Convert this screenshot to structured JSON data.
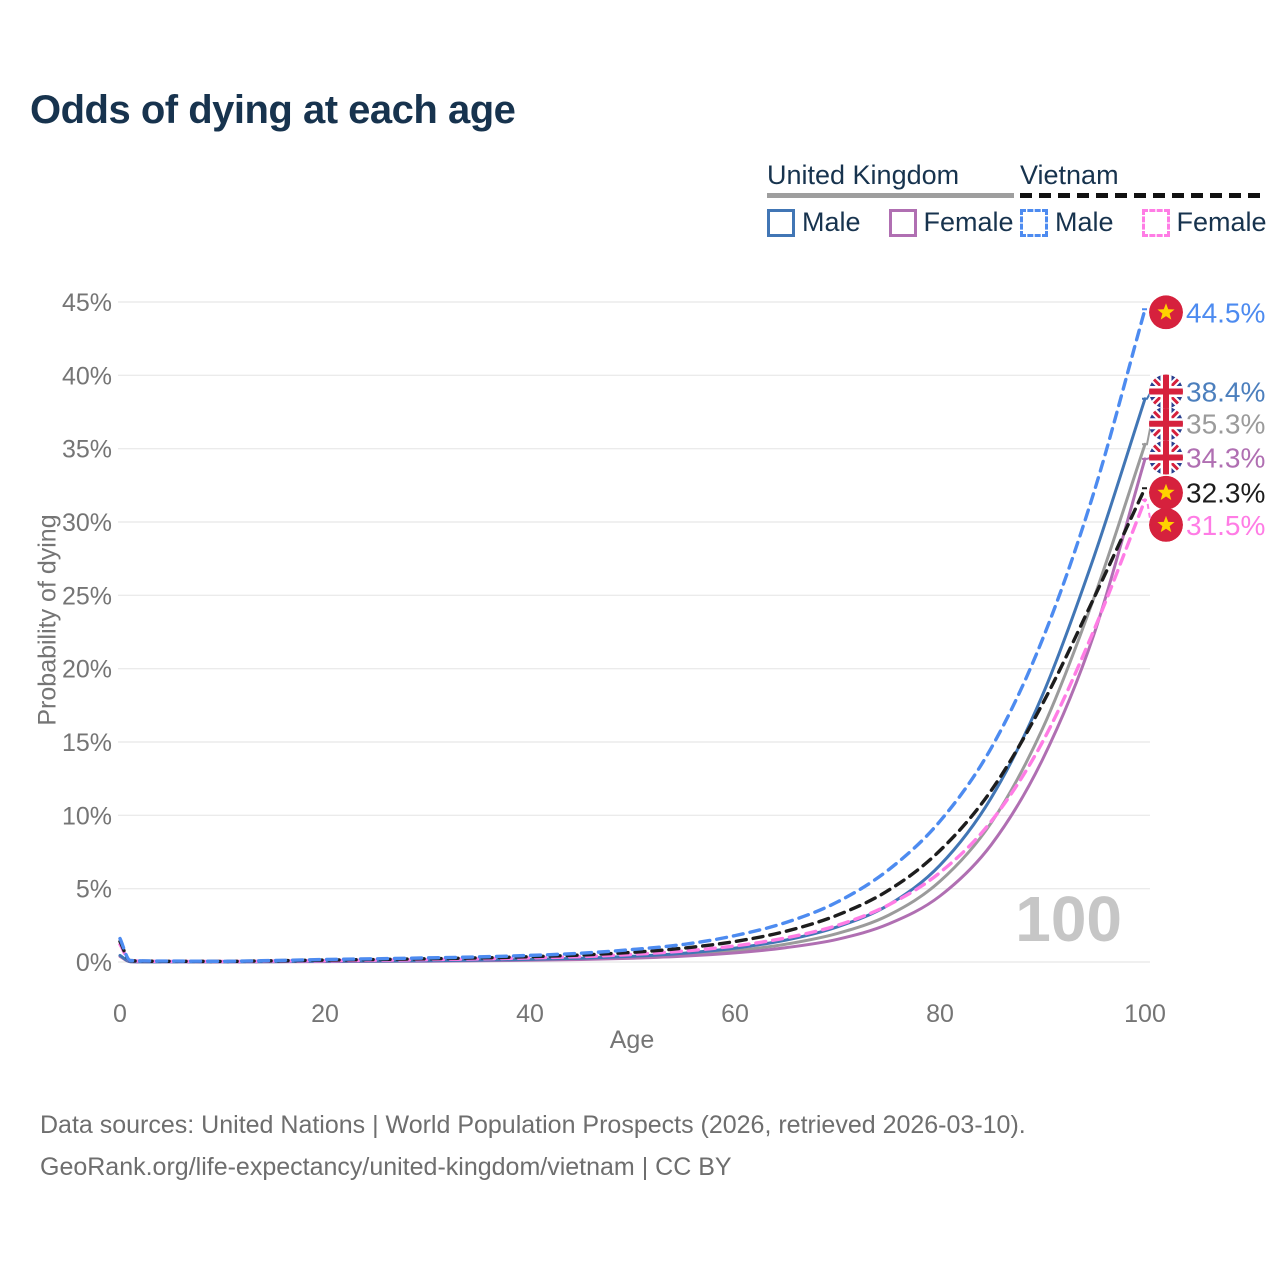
{
  "header": {
    "title": "Odds of dying at each age"
  },
  "legend": {
    "groups": [
      {
        "title": "United Kingdom",
        "underline_style": "solid",
        "underline_color": "#9e9e9e",
        "items": [
          {
            "label": "Male",
            "swatch_color": "#4176b5",
            "swatch_style": "solid"
          },
          {
            "label": "Female",
            "swatch_color": "#b06fb2",
            "swatch_style": "solid"
          }
        ]
      },
      {
        "title": "Vietnam",
        "underline_style": "dashed",
        "underline_color": "#111111",
        "items": [
          {
            "label": "Male",
            "swatch_color": "#4d8bf0",
            "swatch_style": "dashed"
          },
          {
            "label": "Female",
            "swatch_color": "#ff7ce5",
            "swatch_style": "dashed"
          }
        ]
      }
    ]
  },
  "chart_data": {
    "type": "line",
    "title": "Odds of dying at each age",
    "xlabel": "Age",
    "ylabel": "Probability of dying",
    "xlim": [
      0,
      100
    ],
    "ylim": [
      0,
      45
    ],
    "x_ticks": [
      0,
      20,
      40,
      60,
      80,
      100
    ],
    "y_ticks_percent": [
      0,
      5,
      10,
      15,
      20,
      25,
      30,
      35,
      40,
      45
    ],
    "grid": "horizontal",
    "watermark": "100",
    "ages": [
      0,
      1,
      5,
      10,
      15,
      20,
      25,
      30,
      35,
      40,
      45,
      50,
      55,
      60,
      65,
      70,
      75,
      80,
      85,
      90,
      95,
      100
    ],
    "series": [
      {
        "name": "United Kingdom Total",
        "flag": "uk",
        "line_style": "solid",
        "color": "#9b9b9b",
        "values_percent": [
          0.42,
          0.025,
          0.009,
          0.009,
          0.025,
          0.045,
          0.055,
          0.075,
          0.105,
          0.15,
          0.21,
          0.32,
          0.49,
          0.77,
          1.22,
          1.95,
          3.2,
          5.5,
          9.5,
          15.9,
          24.8,
          35.3
        ],
        "end_label": "35.3%",
        "label_color": "#9b9b9b",
        "label_pos_percent": 36.7
      },
      {
        "name": "United Kingdom Female",
        "flag": "uk",
        "line_style": "solid",
        "color": "#b06fb2",
        "values_percent": [
          0.38,
          0.02,
          0.008,
          0.008,
          0.02,
          0.03,
          0.04,
          0.055,
          0.08,
          0.12,
          0.17,
          0.26,
          0.4,
          0.62,
          0.98,
          1.55,
          2.6,
          4.5,
          8.0,
          13.8,
          22.3,
          34.3
        ],
        "end_label": "34.3%",
        "label_color": "#b06fb2",
        "label_pos_percent": 34.4
      },
      {
        "name": "United Kingdom Male",
        "flag": "uk",
        "line_style": "solid",
        "color": "#4176b5",
        "values_percent": [
          0.45,
          0.03,
          0.01,
          0.01,
          0.03,
          0.06,
          0.07,
          0.09,
          0.13,
          0.18,
          0.26,
          0.39,
          0.6,
          0.95,
          1.5,
          2.4,
          3.9,
          6.6,
          11.2,
          18.2,
          27.6,
          38.4
        ],
        "end_label": "38.4%",
        "label_color": "#4c7fbd",
        "label_pos_percent": 38.9
      },
      {
        "name": "Vietnam Female",
        "flag": "vn",
        "line_style": "dashed",
        "color": "#ff7ce5",
        "values_percent": [
          1.2,
          0.08,
          0.04,
          0.035,
          0.06,
          0.09,
          0.12,
          0.16,
          0.21,
          0.28,
          0.37,
          0.52,
          0.75,
          1.1,
          1.65,
          2.5,
          3.9,
          6.1,
          9.6,
          15.0,
          22.6,
          31.5
        ],
        "end_label": "31.5%",
        "label_color": "#ff7ce5",
        "label_pos_percent": 29.8
      },
      {
        "name": "Vietnam Total",
        "flag": "vn",
        "line_style": "dashed",
        "color": "#1d1d1d",
        "values_percent": [
          1.4,
          0.09,
          0.05,
          0.04,
          0.08,
          0.13,
          0.17,
          0.22,
          0.28,
          0.36,
          0.48,
          0.66,
          0.95,
          1.4,
          2.1,
          3.2,
          4.9,
          7.6,
          11.7,
          17.6,
          24.8,
          32.3
        ],
        "end_label": "32.3%",
        "label_color": "#1d1d1d",
        "label_pos_percent": 32.0
      },
      {
        "name": "Vietnam Male",
        "flag": "vn",
        "line_style": "dashed",
        "color": "#4d8bf0",
        "values_percent": [
          1.6,
          0.1,
          0.06,
          0.05,
          0.1,
          0.17,
          0.22,
          0.28,
          0.35,
          0.45,
          0.6,
          0.85,
          1.2,
          1.8,
          2.7,
          4.1,
          6.3,
          9.6,
          14.6,
          22.0,
          32.0,
          44.5
        ],
        "end_label": "44.5%",
        "label_color": "#4d8bf0",
        "label_pos_percent": 44.3
      }
    ],
    "flag_colors": {
      "uk_blue": "#2a3f8f",
      "uk_red": "#d6213d",
      "uk_white": "#ffffff",
      "vn_red": "#d6213d",
      "vn_yellow": "#ffd200"
    },
    "grid_color": "#ebebeb",
    "tick_color": "#757575",
    "watermark_color": "#c6c6c6"
  },
  "footer": {
    "line1": "Data sources: United Nations | World Population Prospects (2026, retrieved 2026-03-10).",
    "line2": "GeoRank.org/life-expectancy/united-kingdom/vietnam | CC BY"
  }
}
